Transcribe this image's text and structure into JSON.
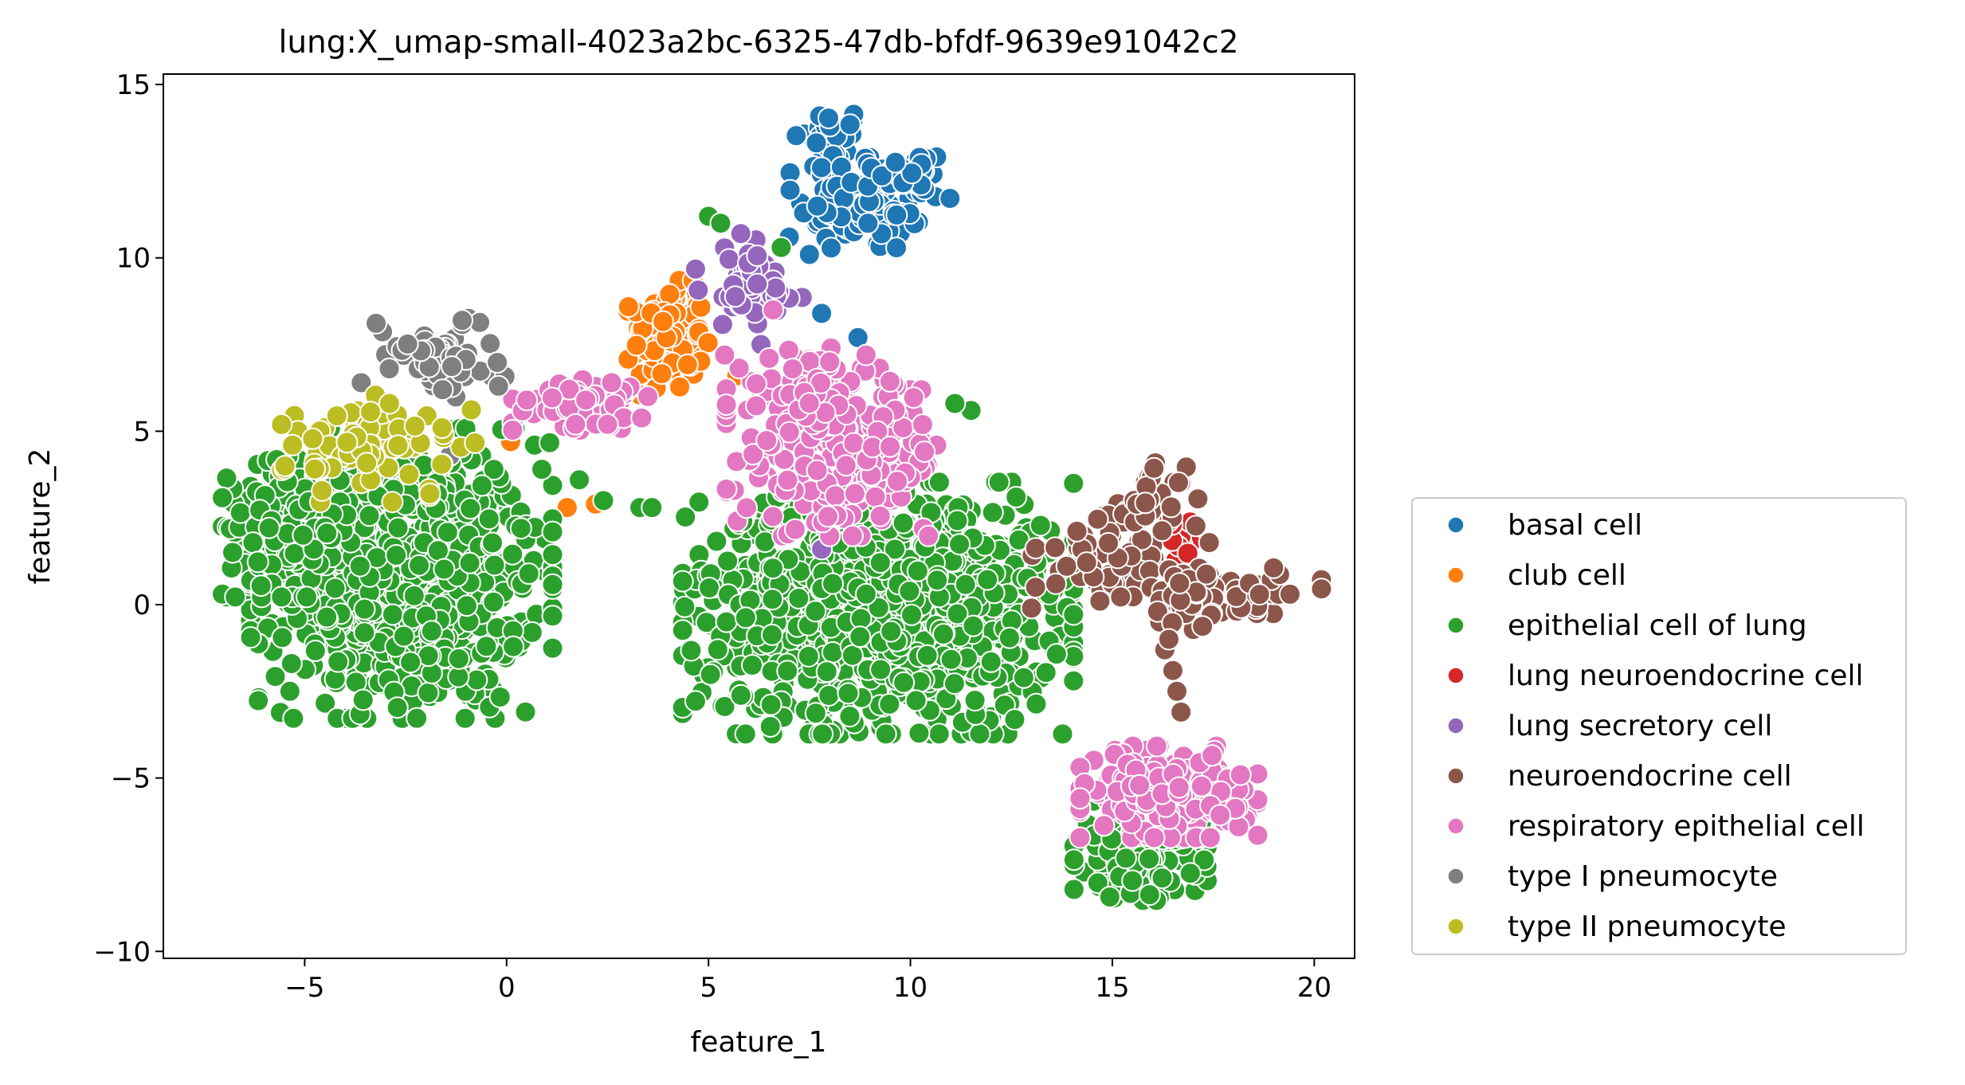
{
  "chart_data": {
    "type": "scatter",
    "title": "lung:X_umap-small-4023a2bc-6325-47db-bfdf-9639e91042c2",
    "xlabel": "feature_1",
    "ylabel": "feature_2",
    "xlim": [
      -8.5,
      21
    ],
    "ylim": [
      -10.2,
      15.3
    ],
    "xticks": [
      -5,
      0,
      5,
      10,
      15,
      20
    ],
    "yticks": [
      -10,
      -5,
      0,
      5,
      10,
      15
    ],
    "xtick_labels": [
      "−5",
      "0",
      "5",
      "10",
      "15",
      "20"
    ],
    "ytick_labels": [
      "−10",
      "−5",
      "0",
      "5",
      "10",
      "15"
    ],
    "grid": false,
    "legend_position": "outside-right-bottom",
    "series": [
      {
        "name": "basal cell",
        "color": "#1f77b4",
        "clusters": [
          {
            "center": [
              8.0,
              13.3
            ],
            "spread": [
              0.45,
              0.55
            ],
            "count": 35
          },
          {
            "center": [
              9.0,
              11.6
            ],
            "spread": [
              0.9,
              0.75
            ],
            "count": 90
          },
          {
            "center": [
              10.0,
              12.5
            ],
            "spread": [
              0.45,
              0.3
            ],
            "count": 30
          }
        ],
        "points": [
          [
            7.8,
            8.4
          ],
          [
            8.7,
            7.7
          ],
          [
            7.5,
            10.1
          ],
          [
            7.0,
            10.6
          ]
        ]
      },
      {
        "name": "club cell",
        "color": "#ff7f0e",
        "clusters": [
          {
            "center": [
              4.0,
              7.7
            ],
            "spread": [
              0.45,
              0.75
            ],
            "count": 110
          }
        ],
        "points": [
          [
            1.5,
            2.8
          ],
          [
            2.2,
            2.9
          ],
          [
            5.7,
            6.6
          ],
          [
            0.1,
            4.7
          ]
        ]
      },
      {
        "name": "epithelial cell of lung",
        "color": "#2ca02c",
        "clusters": [
          {
            "center": [
              -2.6,
              0.9
            ],
            "spread": [
              1.7,
              1.9
            ],
            "count": 900
          },
          {
            "center": [
              -5.5,
              2.2
            ],
            "spread": [
              0.7,
              0.9
            ],
            "count": 150
          },
          {
            "center": [
              9.2,
              -0.1
            ],
            "spread": [
              2.2,
              1.65
            ],
            "count": 1100
          },
          {
            "center": [
              15.7,
              -7.1
            ],
            "spread": [
              0.75,
              0.65
            ],
            "count": 200
          }
        ],
        "points": [
          [
            5.0,
            11.2
          ],
          [
            5.3,
            11.0
          ],
          [
            6.8,
            10.3
          ],
          [
            3.3,
            2.8
          ],
          [
            3.6,
            2.8
          ],
          [
            11.5,
            5.6
          ],
          [
            11.1,
            5.8
          ],
          [
            7.8,
            6.6
          ],
          [
            1.8,
            3.6
          ],
          [
            2.4,
            3.0
          ]
        ]
      },
      {
        "name": "lung neuroendocrine cell",
        "color": "#d62728",
        "clusters": [
          {
            "center": [
              16.7,
              1.6
            ],
            "spread": [
              0.3,
              0.45
            ],
            "count": 12
          }
        ],
        "points": [
          [
            16.3,
            1.0
          ],
          [
            16.4,
            2.4
          ]
        ]
      },
      {
        "name": "lung secretory cell",
        "color": "#9467bd",
        "clusters": [
          {
            "center": [
              6.0,
              9.2
            ],
            "spread": [
              0.6,
              0.6
            ],
            "count": 60
          }
        ],
        "points": [
          [
            5.8,
            10.7
          ],
          [
            6.3,
            7.5
          ],
          [
            7.8,
            1.6
          ],
          [
            8.2,
            2.5
          ]
        ]
      },
      {
        "name": "neuroendocrine cell",
        "color": "#8c564b",
        "clusters": [
          {
            "center": [
              15.2,
              1.4
            ],
            "spread": [
              1.0,
              0.75
            ],
            "count": 70
          },
          {
            "center": [
              16.0,
              3.1
            ],
            "spread": [
              0.4,
              0.45
            ],
            "count": 25
          },
          {
            "center": [
              18.2,
              0.4
            ],
            "spread": [
              0.9,
              0.3
            ],
            "count": 45
          },
          {
            "center": [
              16.6,
              0.0
            ],
            "spread": [
              0.4,
              0.4
            ],
            "count": 25
          }
        ],
        "points": [
          [
            13.1,
            0.5
          ],
          [
            13.6,
            0.6
          ],
          [
            16.3,
            -1.3
          ],
          [
            16.4,
            -1.0
          ],
          [
            16.5,
            -1.9
          ],
          [
            16.6,
            -2.5
          ],
          [
            16.7,
            -3.1
          ],
          [
            13.0,
            -0.1
          ],
          [
            19.4,
            0.3
          ]
        ]
      },
      {
        "name": "respiratory epithelial cell",
        "color": "#e377c2",
        "clusters": [
          {
            "center": [
              8.3,
              4.4
            ],
            "spread": [
              1.3,
              1.1
            ],
            "count": 260
          },
          {
            "center": [
              7.5,
              6.3
            ],
            "spread": [
              0.6,
              0.5
            ],
            "count": 40
          },
          {
            "center": [
              16.4,
              -5.4
            ],
            "spread": [
              1.0,
              0.6
            ],
            "count": 220
          },
          {
            "center": [
              1.8,
              5.8
            ],
            "spread": [
              0.75,
              0.35
            ],
            "count": 60
          }
        ],
        "points": [
          [
            6.5,
            7.1
          ],
          [
            5.4,
            7.2
          ],
          [
            8.0,
            7.0
          ],
          [
            8.9,
            7.2
          ],
          [
            2.6,
            6.4
          ],
          [
            3.5,
            6.0
          ],
          [
            6.6,
            8.5
          ],
          [
            0.5,
            5.9
          ],
          [
            2.5,
            5.2
          ]
        ]
      },
      {
        "name": "type I pneumocyte",
        "color": "#7f7f7f",
        "clusters": [
          {
            "center": [
              -1.8,
              7.2
            ],
            "spread": [
              0.8,
              0.55
            ],
            "count": 55
          }
        ],
        "points": [
          [
            -1.1,
            8.2
          ],
          [
            -3.6,
            6.4
          ],
          [
            -1.4,
            4.3
          ],
          [
            -0.2,
            6.3
          ]
        ]
      },
      {
        "name": "type II pneumocyte",
        "color": "#bcbd22",
        "clusters": [
          {
            "center": [
              -3.2,
              4.5
            ],
            "spread": [
              1.1,
              0.7
            ],
            "count": 75
          }
        ],
        "points": [
          [
            -5.3,
            4.6
          ],
          [
            -1.9,
            3.2
          ],
          [
            -1.6,
            5.1
          ],
          [
            -2.9,
            5.8
          ]
        ]
      }
    ]
  }
}
